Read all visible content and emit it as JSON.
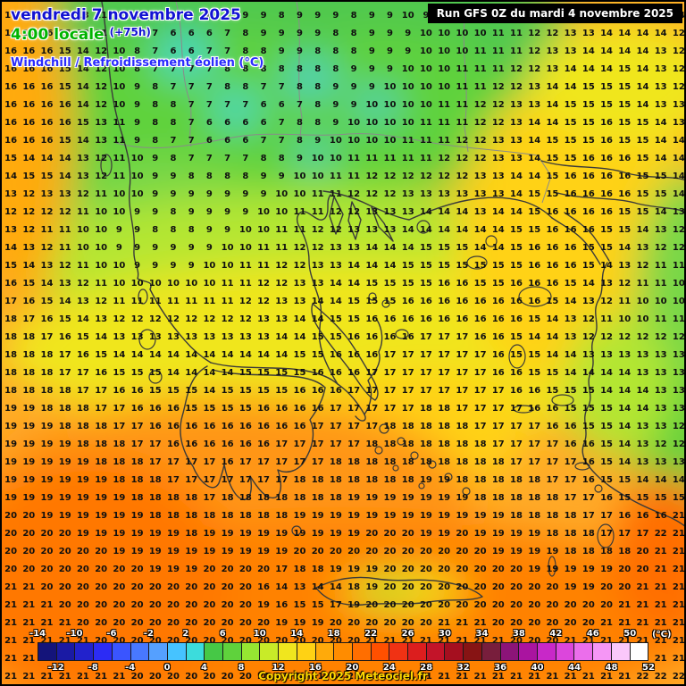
{
  "header": {
    "date": "vendredi 7 novembre 2025",
    "time": "4:00 locale",
    "offset": "(+75h)",
    "subtitle": "Windchill / Refroidissement éolien (°C)",
    "run_info": "Run GFS 0Z du mardi 4 novembre 2025"
  },
  "footer": {
    "copyright": "Copyright 2025 Meteociel.fr"
  },
  "chart_data": {
    "type": "heatmap",
    "title": "Windchill / Refroidissement éolien (°C)",
    "model_run": "Run GFS 0Z du mardi 4 novembre 2025",
    "valid_time": "vendredi 7 novembre 2025 4:00 locale (+75h)",
    "unit": "°C",
    "grid_rows": [
      "16 16 16 15 13 11 9 8 7 6 5 6 7 9 9 8 9 9 9 8 9 9 10 9 9 10 10 10 11 11 12 12 13 13 14 14 14 14",
      "16 16 16 15 13 11 9 8 7 6 6 6 7 8 9 9 9 9 8 8 9 9 9 10 10 10 10 11 11 12 12 13 13 14 14 14 14 12",
      "16 16 16 15 14 12 10 8 7 6 6 7 7 8 8 9 9 8 8 8 9 9 9 10 10 10 11 11 11 12 13 13 14 14 14 14 13 12",
      "16 16 16 15 14 12 10 8 7 7 7 7 8 8 8 8 8 8 8 9 9 9 10 10 10 11 11 11 12 12 13 14 14 14 15 14 13 12",
      "16 16 16 15 14 12 10 9 8 7 7 7 8 8 7 7 8 8 9 9 9 10 10 10 10 11 11 12 12 13 14 14 15 15 15 14 13 12",
      "16 16 16 16 14 12 10 9 8 8 7 7 7 7 6 6 7 8 9 9 10 10 10 10 11 11 12 12 13 13 14 15 15 15 15 14 13 13",
      "16 16 16 16 15 13 11 9 8 8 7 6 6 6 6 7 8 8 9 10 10 10 10 11 11 11 12 12 13 14 14 15 15 16 15 15 14 13",
      "16 16 16 15 14 13 11 9 8 7 7 6 6 6 7 7 8 9 10 10 10 10 11 11 11 12 12 13 13 14 15 15 15 16 15 15 14 14",
      "15 14 14 14 13 12 11 10 9 8 7 7 7 7 8 8 9 10 10 11 11 11 11 11 12 12 12 13 13 14 15 15 16 16 16 15 14 14",
      "14 15 15 14 13 12 11 10 9 9 8 8 8 8 9 9 10 10 11 11 12 12 12 12 12 12 13 13 14 14 15 16 16 16 16 15 15 14",
      "13 12 13 13 12 11 10 10 9 9 9 9 9 9 9 10 10 11 11 12 12 12 13 13 13 13 13 13 14 15 15 16 16 16 16 15 15 14",
      "12 12 12 12 11 10 10 9 9 8 9 9 9 9 10 10 11 11 12 12 13 13 13 14 14 14 13 14 14 15 16 16 16 16 15 15 14 13",
      "13 12 11 11 10 10 9 9 8 8 8 9 9 10 10 11 11 12 12 13 13 13 14 14 14 14 14 14 15 15 16 16 16 15 15 14 13 12",
      "14 13 12 11 10 10 9 9 9 9 9 9 10 10 11 11 12 12 13 13 14 14 14 15 15 15 14 14 15 16 16 16 15 15 14 13 12 12",
      "15 14 13 12 11 10 10 9 9 9 9 10 10 11 11 12 12 13 13 14 14 14 15 15 15 15 15 15 15 16 16 16 15 14 13 12 11 11",
      "16 15 14 13 12 11 10 10 10 10 10 10 11 11 12 12 13 13 14 14 15 15 15 15 16 16 15 15 16 16 16 15 14 13 12 11 11 10",
      "17 16 15 14 13 12 11 11 11 11 11 11 11 12 12 13 13 14 14 15 15 15 16 16 16 16 16 16 16 16 15 14 13 12 11 10 10 10",
      "18 17 16 15 14 13 12 12 12 12 12 12 12 12 13 13 14 14 15 15 16 16 16 16 16 16 16 16 16 15 14 13 12 11 10 10 11 11",
      "18 18 17 16 15 14 13 13 13 13 13 13 13 13 13 14 14 15 15 16 16 16 16 17 17 17 16 16 15 14 14 13 12 12 12 12 12 12",
      "18 18 18 17 16 15 14 14 14 14 14 14 14 14 14 14 15 15 16 16 16 17 17 17 17 17 17 16 15 15 14 14 13 13 13 13 13 13",
      "18 18 18 17 17 16 15 15 15 14 14 14 14 15 15 15 15 16 16 16 17 17 17 17 17 17 17 16 16 15 15 14 14 14 14 13 13 13",
      "18 18 18 18 17 17 16 16 15 15 15 14 15 15 15 15 16 16 16 17 17 17 17 17 17 17 17 17 16 16 15 15 15 14 14 14 13 13",
      "19 19 18 18 18 17 17 16 16 16 15 15 15 15 16 16 16 16 17 17 17 17 17 18 18 17 17 17 17 16 16 15 15 15 14 14 13 13",
      "19 19 19 18 18 18 17 17 16 16 16 16 16 16 16 16 16 17 17 17 17 18 18 18 18 18 17 17 17 17 16 16 15 15 14 13 13 12",
      "19 19 19 19 18 18 18 17 17 16 16 16 16 16 16 17 17 17 17 17 18 18 18 18 18 18 18 17 17 17 17 16 16 15 14 13 12 12",
      "19 19 19 19 19 18 18 18 17 17 17 17 16 17 17 17 17 17 18 18 18 18 18 18 18 18 18 18 17 17 17 17 16 15 14 13 13 13",
      "19 19 19 19 19 19 18 18 18 17 17 17 17 17 17 17 18 18 18 18 18 18 18 19 19 18 18 18 18 18 17 17 16 15 15 14 14 14",
      "19 19 19 19 19 19 19 18 18 18 18 17 18 18 18 18 18 18 18 19 19 19 19 19 19 19 18 18 18 18 18 17 17 16 15 15 15 15",
      "20 20 19 19 19 19 19 19 18 18 18 18 18 18 18 18 19 19 19 19 19 19 19 19 19 19 19 19 18 18 18 18 17 17 16 16 16 21",
      "20 20 20 20 19 19 19 19 19 19 18 19 19 19 19 19 19 19 19 19 20 20 20 19 19 20 19 19 19 19 18 18 18 17 17 17 22 21",
      "20 20 20 20 20 20 19 19 19 19 19 19 19 19 19 19 20 20 20 20 20 20 20 20 20 20 20 19 19 19 19 18 18 18 18 20 21 21",
      "20 20 20 20 20 20 20 20 19 19 19 20 20 20 20 17 18 18 19 19 19 20 20 20 20 20 20 20 20 19 19 19 19 19 20 20 21 21",
      "21 21 20 20 20 20 20 20 20 20 20 20 20 20 16 14 13 14 14 18 19 20 20 20 20 20 20 20 20 20 20 19 19 20 20 21 21 21",
      "21 21 21 20 20 20 20 20 20 20 20 20 20 20 19 16 15 15 17 19 20 20 20 20 20 20 20 20 20 20 20 20 20 20 21 21 21 21",
      "21 21 21 21 20 20 20 20 20 20 20 20 20 20 20 19 19 19 20 20 20 20 20 20 21 21 21 20 20 20 20 20 20 21 21 21 21 21",
      "21 21 21 21 21 20 20 20 20 20 20 20 20 20 20 20 20 20 20 20 21 21 21 21 21 21 21 21 20 20 20 21 21 21 21 21 21 21",
      "21 21 21 21 21 21 20 20 20 20 20 20 20 20 20 20 20 21 21 21 21 21 21 21 21 21 21 21 21 20 21 21 21 21 21 21 21 21",
      "21 21 21 21 21 21 21 20 20 20 20 20 20 20 20 20 21 21 21 21 21 21 21 21 21 21 21 21 21 21 21 21 21 21 21 22 22 22"
    ],
    "colorbar": {
      "unit_label": "(°C)",
      "min": -14,
      "max": 52,
      "step": 2,
      "top_labels": [
        -14,
        -10,
        -6,
        -2,
        2,
        6,
        10,
        14,
        18,
        22,
        26,
        30,
        34,
        38,
        42,
        46,
        50
      ],
      "bottom_labels": [
        -12,
        -8,
        -4,
        0,
        4,
        8,
        12,
        16,
        20,
        24,
        28,
        32,
        36,
        40,
        44,
        48,
        52
      ],
      "colors": [
        "#14147a",
        "#1a1aa4",
        "#2222cc",
        "#2c2cf5",
        "#3a55ff",
        "#4878ff",
        "#55a0ff",
        "#46c3ff",
        "#3cdcdc",
        "#46c846",
        "#5fd23c",
        "#96e632",
        "#c8eb28",
        "#f0e61e",
        "#ffd214",
        "#ffaa0a",
        "#ff8c00",
        "#ff6e00",
        "#ff5000",
        "#f03214",
        "#dc1e1e",
        "#c31429",
        "#a50f1f",
        "#871414",
        "#781e3c",
        "#8c1478",
        "#aa14a0",
        "#c828c8",
        "#dc46dc",
        "#eb6eeb",
        "#f596f5",
        "#fac8fa",
        "#ffffff"
      ]
    }
  }
}
